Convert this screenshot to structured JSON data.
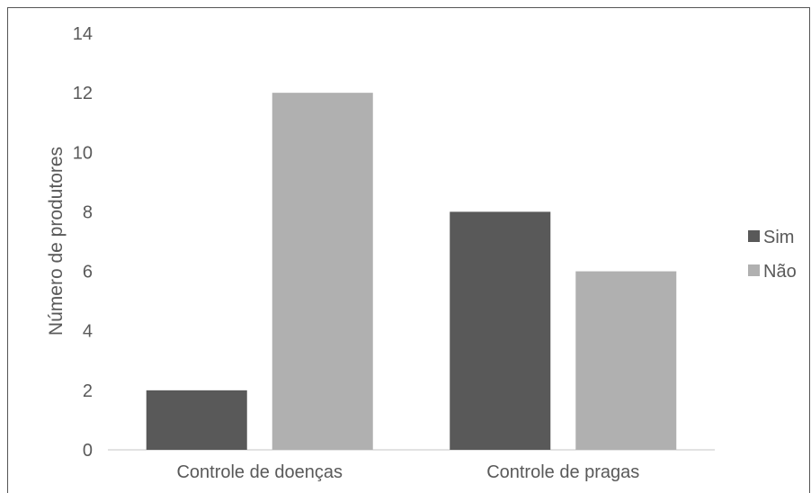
{
  "chart_data": {
    "type": "bar",
    "categories": [
      "Controle de doenças",
      "Controle de pragas"
    ],
    "series": [
      {
        "name": "Sim",
        "values": [
          2,
          8
        ],
        "color": "#595959"
      },
      {
        "name": "Não",
        "values": [
          12,
          6
        ],
        "color": "#b0b0b0"
      }
    ],
    "title": "",
    "xlabel": "",
    "ylabel": "Número de produtores",
    "ylim": [
      0,
      14
    ],
    "yticks": [
      0,
      2,
      4,
      6,
      8,
      10,
      12,
      14
    ],
    "grid": false,
    "legend_position": "right"
  }
}
